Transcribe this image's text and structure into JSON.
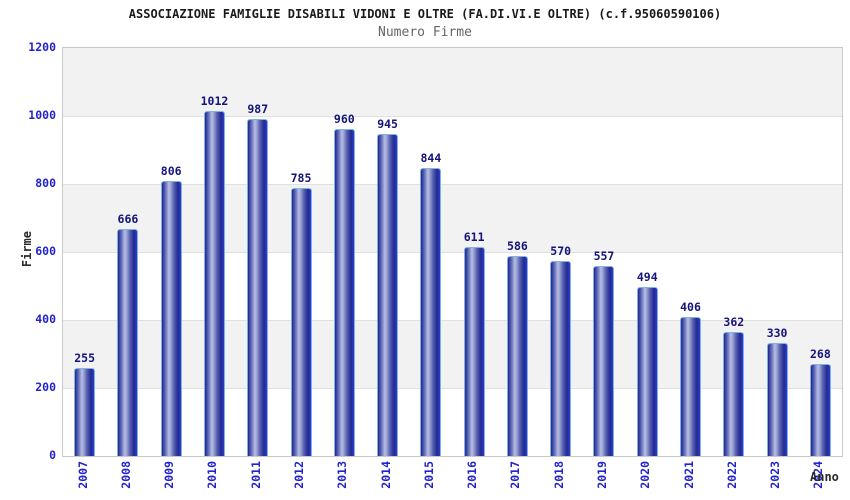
{
  "chart_data": {
    "type": "bar",
    "title": "ASSOCIAZIONE FAMIGLIE DISABILI VIDONI E OLTRE (FA.DI.VI.E OLTRE) (c.f.95060590106)",
    "subtitle": "Numero Firme",
    "xlabel": "Anno",
    "ylabel": "Firme",
    "categories": [
      "2007",
      "2008",
      "2009",
      "2010",
      "2011",
      "2012",
      "2013",
      "2014",
      "2015",
      "2016",
      "2017",
      "2018",
      "2019",
      "2020",
      "2021",
      "2022",
      "2023",
      "2024"
    ],
    "values": [
      255,
      666,
      806,
      1012,
      987,
      785,
      960,
      945,
      844,
      611,
      586,
      570,
      557,
      494,
      406,
      362,
      330,
      268
    ],
    "ylim": [
      0,
      1200
    ],
    "ytick_step": 200,
    "yticks": [
      0,
      200,
      400,
      600,
      800,
      1000,
      1200
    ],
    "grid": "alternating-horizontal-bands",
    "legend": false,
    "bar_value_labels_shown": true,
    "x_labels_rotated_vertical": true
  },
  "colors": {
    "bar_dark": "#1f2590",
    "bar_highlight": "#b7bee3",
    "bar_right_accent": "#2d38c4",
    "bar_outline": "#7fb4e2",
    "axis_tick_label": "#2323cb",
    "bar_value_label": "#14147a",
    "band_gray": "#f2f2f2",
    "band_white": "#ffffff",
    "plot_border": "#c9c9c9",
    "title_color": "#1a1a1a",
    "subtitle_color": "#666666"
  }
}
